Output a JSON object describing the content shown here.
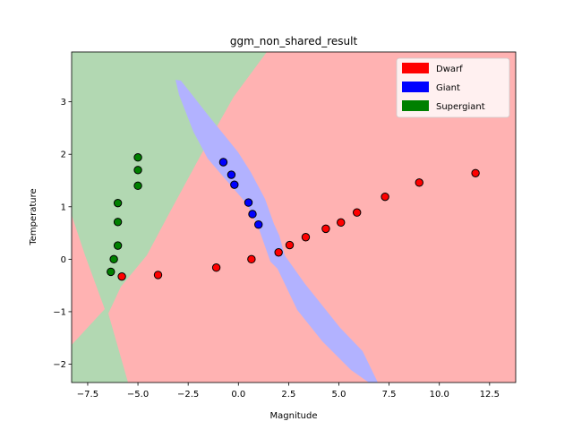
{
  "chart_data": {
    "type": "scatter",
    "title": "ggm_non_shared_result",
    "xlabel": "Magnitude",
    "ylabel": "Temperature",
    "xlim": [
      -8.3,
      13.8
    ],
    "ylim": [
      -2.35,
      3.95
    ],
    "xticks": [
      -7.5,
      -5.0,
      -2.5,
      0.0,
      2.5,
      5.0,
      7.5,
      10.0,
      12.5
    ],
    "xtick_labels": [
      "−7.5",
      "−5.0",
      "−2.5",
      "0.0",
      "2.5",
      "5.0",
      "7.5",
      "10.0",
      "12.5"
    ],
    "yticks": [
      -2,
      -1,
      0,
      1,
      2,
      3
    ],
    "ytick_labels": [
      "−2",
      "−1",
      "0",
      "1",
      "2",
      "3"
    ],
    "grid": false,
    "legend_position": "top-right",
    "background_regions": [
      {
        "class": "Dwarf",
        "color": "#ffb2b2"
      },
      {
        "class": "Giant",
        "color": "#b2b2ff"
      },
      {
        "class": "Supergiant",
        "color": "#b2d8b2"
      }
    ],
    "series": [
      {
        "name": "Dwarf",
        "color": "#ff0000",
        "points": [
          [
            -5.8,
            -0.33
          ],
          [
            -4.0,
            -0.3
          ],
          [
            -1.1,
            -0.16
          ],
          [
            0.65,
            0.0
          ],
          [
            2.0,
            0.13
          ],
          [
            2.55,
            0.27
          ],
          [
            3.35,
            0.42
          ],
          [
            4.35,
            0.58
          ],
          [
            5.1,
            0.7
          ],
          [
            5.9,
            0.89
          ],
          [
            7.3,
            1.19
          ],
          [
            9.0,
            1.46
          ],
          [
            11.8,
            1.64
          ]
        ]
      },
      {
        "name": "Giant",
        "color": "#0000ff",
        "points": [
          [
            -0.75,
            1.85
          ],
          [
            -0.35,
            1.61
          ],
          [
            -0.2,
            1.42
          ],
          [
            0.5,
            1.08
          ],
          [
            0.7,
            0.86
          ],
          [
            1.0,
            0.66
          ]
        ]
      },
      {
        "name": "Supergiant",
        "color": "#008000",
        "points": [
          [
            -5.0,
            1.94
          ],
          [
            -5.0,
            1.7
          ],
          [
            -5.0,
            1.4
          ],
          [
            -6.0,
            1.07
          ],
          [
            -6.0,
            0.71
          ],
          [
            -6.0,
            0.26
          ],
          [
            -6.2,
            0.0
          ],
          [
            -6.35,
            -0.24
          ]
        ]
      }
    ]
  }
}
